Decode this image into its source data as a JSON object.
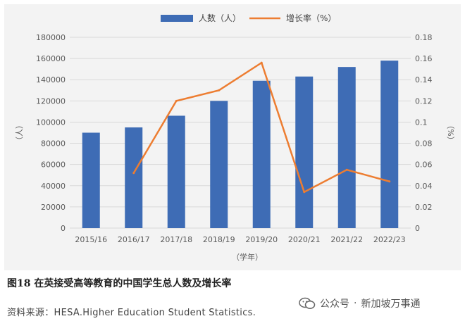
{
  "chart_data": {
    "type": "bar",
    "categories": [
      "2015/16",
      "2016/17",
      "2017/18",
      "2018/19",
      "2019/20",
      "2020/21",
      "2021/22",
      "2022/23"
    ],
    "series": [
      {
        "name": "人数（人）",
        "type": "bar",
        "axis": "left",
        "color": "#3e6cb5",
        "values": [
          90000,
          95000,
          106000,
          120000,
          139000,
          143000,
          152000,
          158000
        ]
      },
      {
        "name": "增长率（%）",
        "type": "line",
        "axis": "right",
        "color": "#ed7d31",
        "values": [
          null,
          0.052,
          0.12,
          0.13,
          0.156,
          0.034,
          0.055,
          0.044
        ]
      }
    ],
    "xlabel": "（学年）",
    "ylabel_left": "（人）",
    "ylabel_right": "（%）",
    "ylim_left": [
      0,
      180000
    ],
    "ylim_right": [
      0,
      0.18
    ],
    "yticks_left": [
      "0",
      "20000",
      "40000",
      "60000",
      "80000",
      "100000",
      "120000",
      "140000",
      "160000",
      "180000"
    ],
    "yticks_right": [
      "0",
      "0.02",
      "0.04",
      "0.06",
      "0.08",
      "0.1",
      "0.12",
      "0.14",
      "0.16",
      "0.18"
    ],
    "grid": "horizontal",
    "legend_position": "top"
  },
  "caption": "图18 在英接受高等教育的中国学生总人数及增长率",
  "source": "资料来源：HESA.Higher Education Student Statistics.",
  "watermark": {
    "dot": "·",
    "account_type": "公众号",
    "account_name": "新加坡万事通"
  }
}
